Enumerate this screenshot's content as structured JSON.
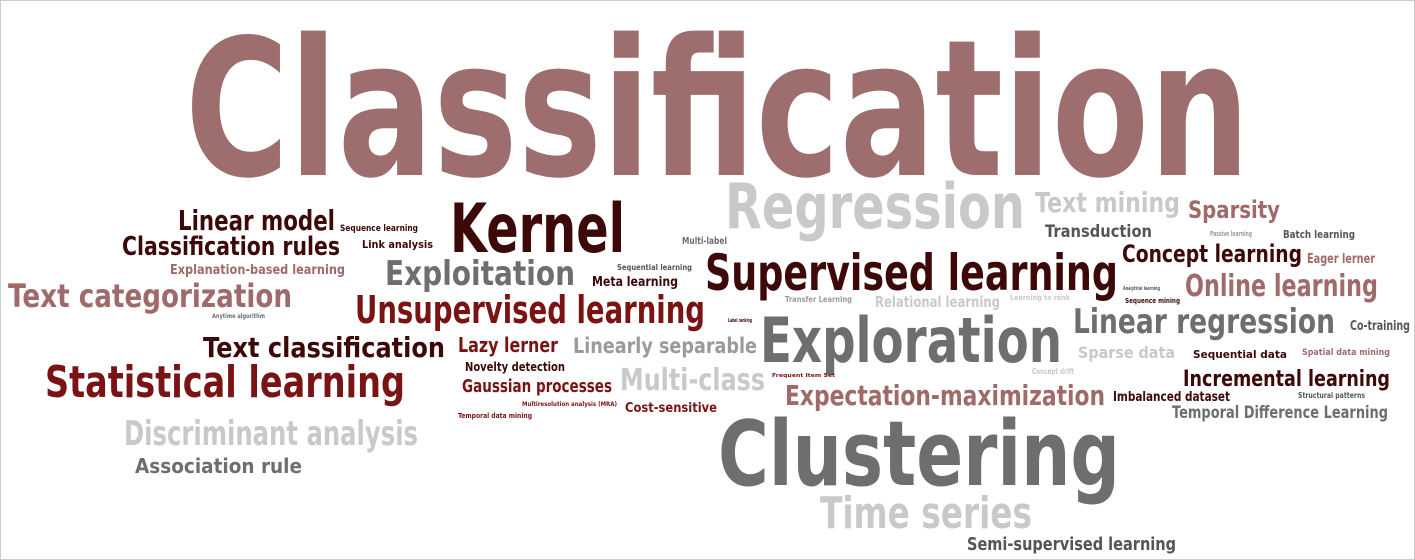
{
  "words": [
    "Classification",
    "Regression",
    "Text mining",
    "Sparsity",
    "Linear model",
    "Sequence learning",
    "Kernel",
    "Classification rules",
    "Link analysis",
    "Multi-label",
    "Transduction",
    "Passive learning",
    "Batch learning",
    "Concept learning",
    "Eager lerner",
    "Explanation-based learning",
    "Exploitation",
    "Sequential learning",
    "Meta learning",
    "Supervised learning",
    "Online learning",
    "Text categorization",
    "Unsupervised learning",
    "Transfer Learning",
    "Relational learning",
    "Learning to rank",
    "Analytical learning",
    "Sequence mining",
    "Linear regression",
    "Co-training",
    "Anytime algorithm",
    "Text classification",
    "Lazy lerner",
    "Linearly separable",
    "Exploration",
    "Label ranking",
    "Sparse data",
    "Sequential data",
    "Spatial data mining",
    "Statistical learning",
    "Novelty detection",
    "Gaussian processes",
    "Multi-class",
    "Frequent Item Set",
    "Concept drift",
    "Incremental learning",
    "Expectation-maximization",
    "Imbalanced dataset",
    "Structural patterns",
    "Multiresolution analysis (MRA)",
    "Cost-sensitive",
    "Temporal data mining",
    "Temporal Difference Learning",
    "Discriminant analysis",
    "Clustering",
    "Association rule",
    "Time series",
    "Semi-supervised learning"
  ]
}
